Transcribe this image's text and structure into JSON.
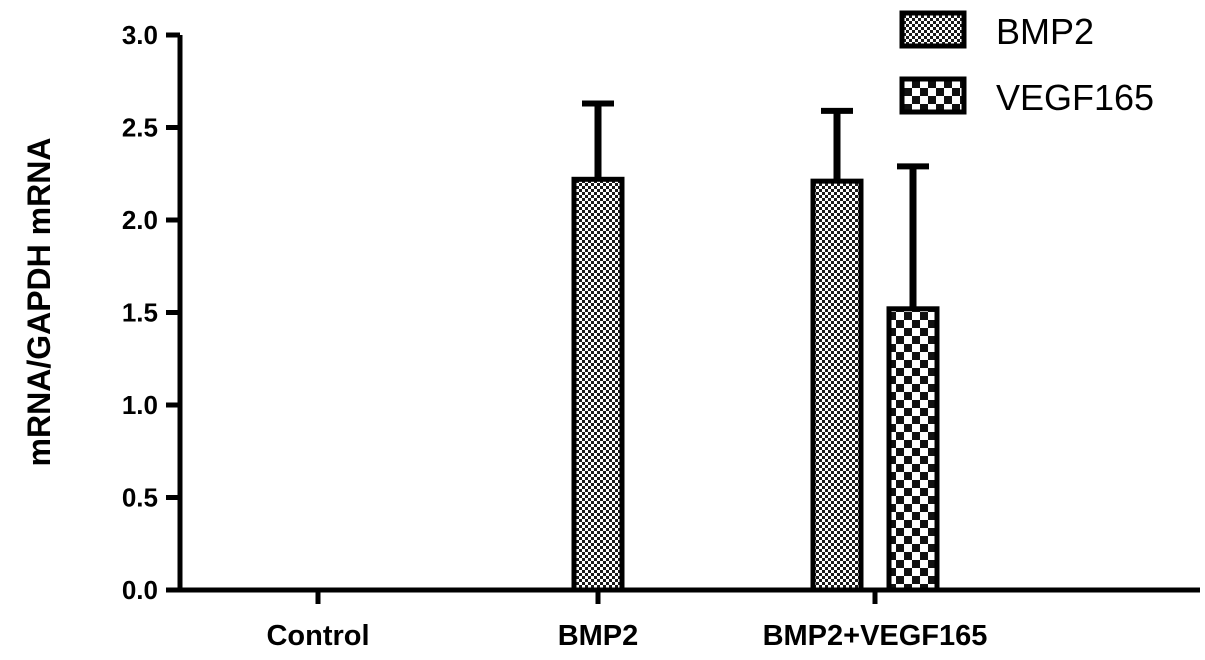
{
  "chart_data": {
    "type": "bar",
    "title": "",
    "xlabel": "",
    "ylabel": "mRNA/GAPDH mRNA",
    "ylim": [
      0,
      3.0
    ],
    "yticks": [
      "0.0",
      "0.5",
      "1.0",
      "1.5",
      "2.0",
      "2.5",
      "3.0"
    ],
    "categories": [
      "Control",
      "BMP2",
      "BMP2+VEGF165"
    ],
    "legend_position": "top-right",
    "grid": false,
    "series": [
      {
        "name": "BMP2",
        "pattern": "fine-checker",
        "values": [
          0,
          2.22,
          2.21
        ],
        "errors": [
          0,
          0.41,
          0.38
        ]
      },
      {
        "name": "VEGF165",
        "pattern": "coarse-checker",
        "values": [
          0,
          0,
          1.52
        ],
        "errors": [
          0,
          0,
          0.77
        ]
      }
    ]
  }
}
